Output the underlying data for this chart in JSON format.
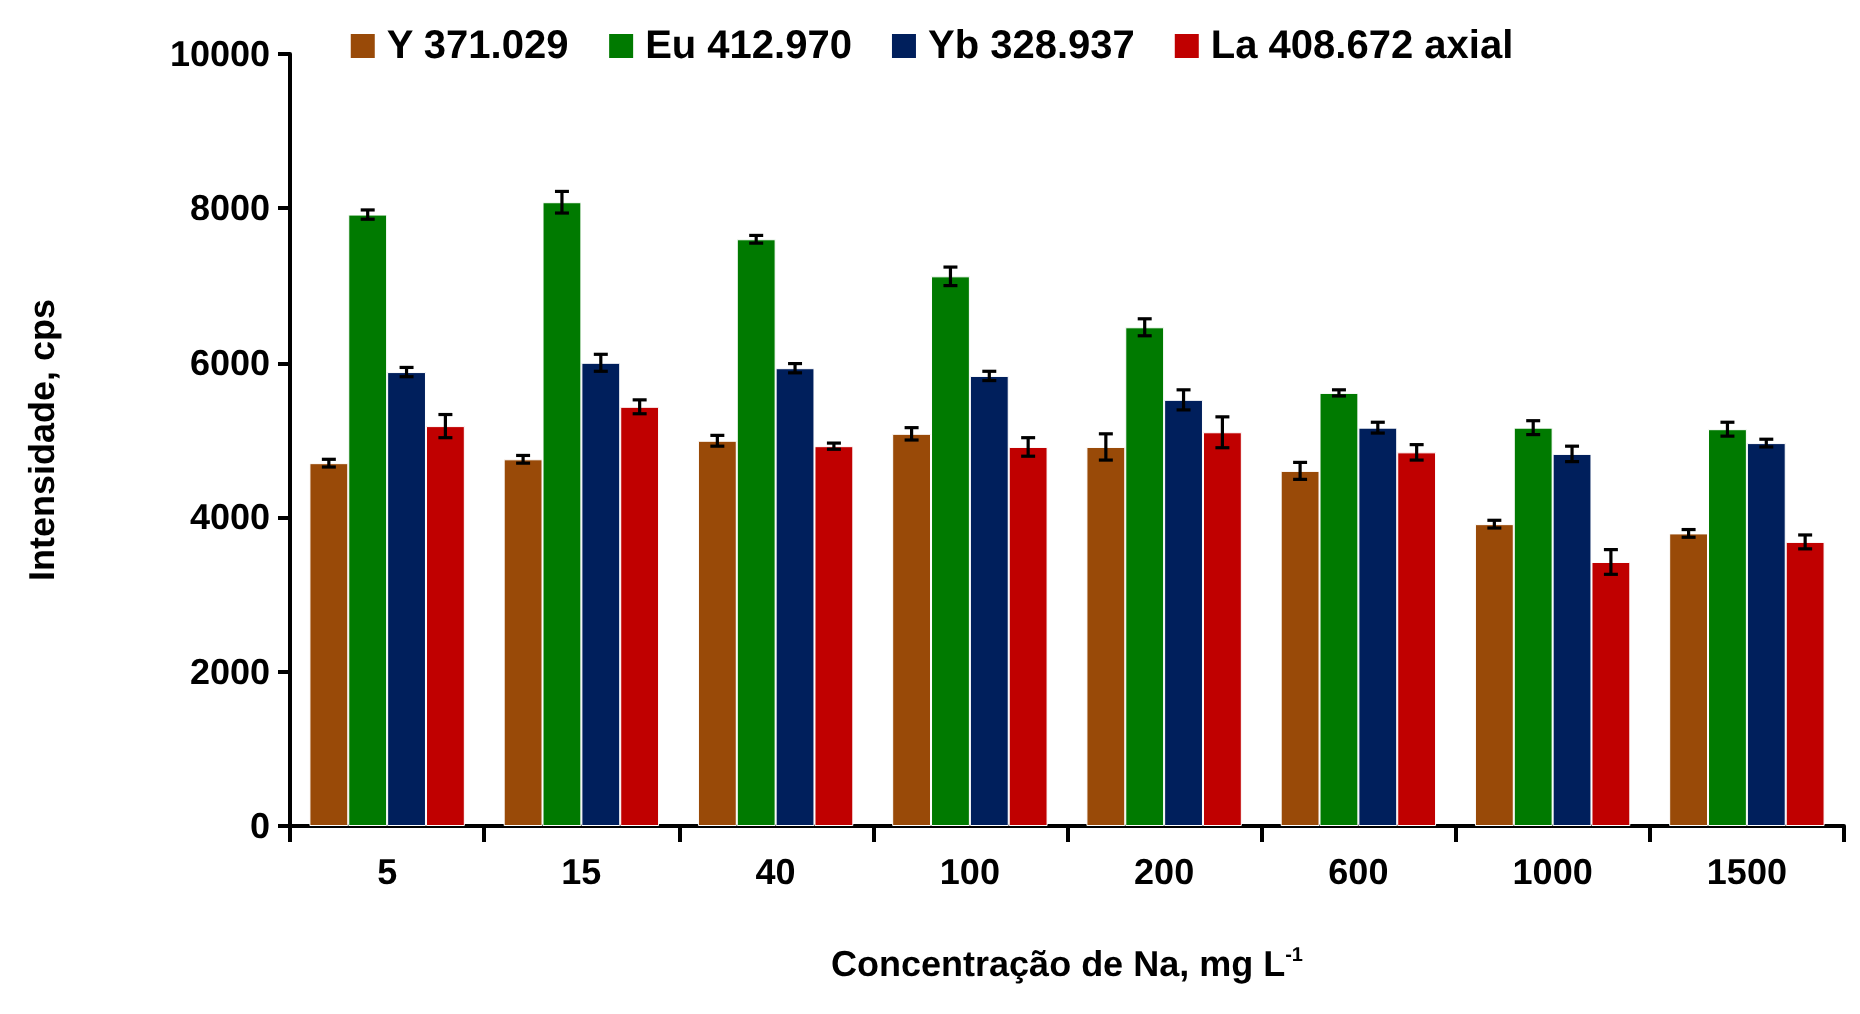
{
  "chart_data": {
    "type": "bar",
    "xlabel": "Concentração de Na, mg L$^{-1}$",
    "ylabel": "Intensidade, cps",
    "categories": [
      "5",
      "15",
      "40",
      "100",
      "200",
      "600",
      "1000",
      "1500"
    ],
    "series": [
      {
        "name": "Y 371.029",
        "color": "#994a08",
        "values": [
          4700,
          4750,
          4990,
          5080,
          4910,
          4600,
          3910,
          3790
        ],
        "errors": [
          50,
          50,
          70,
          80,
          170,
          110,
          50,
          50
        ]
      },
      {
        "name": "Eu 412.970",
        "color": "#007a00",
        "values": [
          7920,
          8080,
          7600,
          7120,
          6460,
          5610,
          5160,
          5140
        ],
        "errors": [
          60,
          140,
          50,
          120,
          110,
          40,
          90,
          90
        ]
      },
      {
        "name": "Yb 328.937",
        "color": "#001f5c",
        "values": [
          5880,
          6000,
          5930,
          5830,
          5520,
          5160,
          4820,
          4960
        ],
        "errors": [
          60,
          110,
          60,
          60,
          130,
          70,
          100,
          50
        ]
      },
      {
        "name": "La 408.672 axial",
        "color": "#c00000",
        "values": [
          5180,
          5430,
          4920,
          4910,
          5100,
          4840,
          3420,
          3680
        ],
        "errors": [
          150,
          90,
          40,
          120,
          200,
          100,
          160,
          90
        ]
      }
    ],
    "ylim": [
      0,
      10000
    ],
    "yticks": [
      0,
      2000,
      4000,
      6000,
      8000,
      10000
    ],
    "grid": false,
    "legend": "top"
  }
}
